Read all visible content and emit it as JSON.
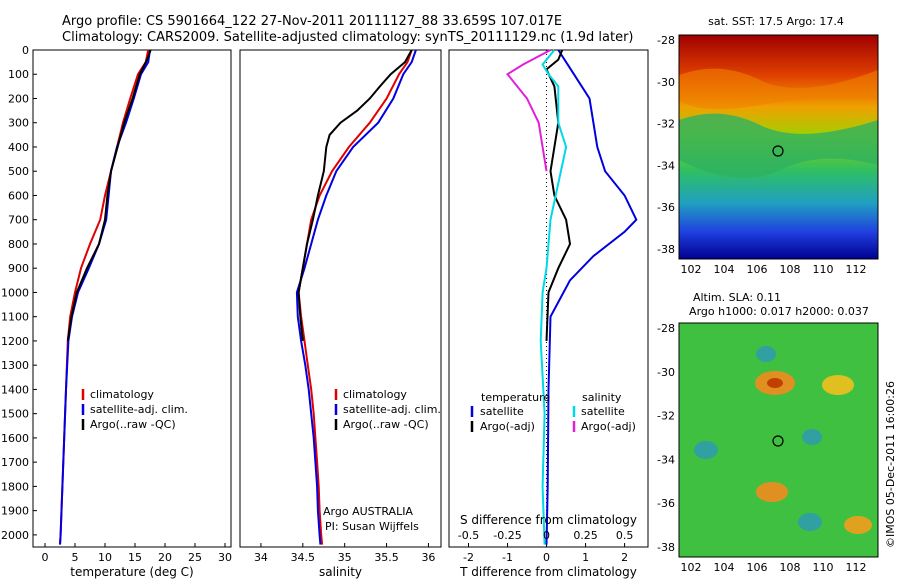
{
  "title_line1": "Argo profile: CS 5901664_122 27-Nov-2011 20111127_88 33.659S 107.017E",
  "title_line2": "Climatology: CARS2009. Satellite-adjusted climatology: synTS_20111129.nc (1.9d later)",
  "colors": {
    "climatology": "#e00000",
    "satellite": "#0000e0",
    "argo": "#000000",
    "satellite_salinity": "#00d8e8",
    "argo_adj_salinity": "#e020d8"
  },
  "chart_data": [
    {
      "type": "line",
      "id": "temperature",
      "xlabel": "temperature (deg C)",
      "xlim": [
        -2,
        31
      ],
      "xticks": [
        0,
        5,
        10,
        15,
        20,
        25,
        30
      ],
      "ylim": [
        2050,
        0
      ],
      "yticks": [
        0,
        100,
        200,
        300,
        400,
        500,
        600,
        700,
        800,
        900,
        1000,
        1100,
        1200,
        1300,
        1400,
        1500,
        1600,
        1700,
        1800,
        1900,
        2000
      ],
      "legend": [
        "climatology",
        "satellite-adj. clim.",
        "Argo(..raw -QC)"
      ],
      "series": [
        {
          "name": "climatology",
          "color": "#e00000",
          "points": [
            [
              17.2,
              0
            ],
            [
              16.8,
              50
            ],
            [
              15.5,
              100
            ],
            [
              14.2,
              200
            ],
            [
              13,
              300
            ],
            [
              12,
              400
            ],
            [
              11,
              500
            ],
            [
              10,
              600
            ],
            [
              9.2,
              700
            ],
            [
              7.5,
              800
            ],
            [
              6,
              900
            ],
            [
              5,
              1000
            ],
            [
              4.2,
              1100
            ],
            [
              3.8,
              1200
            ],
            [
              3.5,
              1400
            ],
            [
              3.2,
              1600
            ],
            [
              2.9,
              1800
            ],
            [
              2.6,
              2000
            ],
            [
              2.5,
              2040
            ]
          ]
        },
        {
          "name": "satellite-adj. clim.",
          "color": "#0000e0",
          "points": [
            [
              17.5,
              0
            ],
            [
              17.2,
              50
            ],
            [
              16,
              100
            ],
            [
              14.8,
              200
            ],
            [
              13.5,
              300
            ],
            [
              12,
              400
            ],
            [
              11,
              500
            ],
            [
              10.6,
              600
            ],
            [
              10.2,
              700
            ],
            [
              9,
              800
            ],
            [
              7.3,
              900
            ],
            [
              5.5,
              1000
            ],
            [
              4.5,
              1100
            ],
            [
              3.9,
              1200
            ],
            [
              3.5,
              1400
            ],
            [
              3.2,
              1600
            ],
            [
              2.9,
              1800
            ],
            [
              2.6,
              2000
            ],
            [
              2.5,
              2040
            ]
          ]
        },
        {
          "name": "Argo(..raw -QC)",
          "color": "#000000",
          "points": [
            [
              17.6,
              0
            ],
            [
              17,
              40
            ],
            [
              15.8,
              100
            ],
            [
              14.6,
              200
            ],
            [
              13.2,
              300
            ],
            [
              12.1,
              400
            ],
            [
              11,
              500
            ],
            [
              10.4,
              600
            ],
            [
              10,
              700
            ],
            [
              9,
              800
            ],
            [
              7,
              900
            ],
            [
              5.3,
              1000
            ],
            [
              4.4,
              1100
            ],
            [
              3.8,
              1200
            ]
          ]
        }
      ]
    },
    {
      "type": "line",
      "id": "salinity",
      "xlabel": "salinity",
      "xlim": [
        33.75,
        36.15
      ],
      "xticks": [
        34,
        34.5,
        35,
        35.5,
        36
      ],
      "ylim": [
        2050,
        0
      ],
      "legend": [
        "climatology",
        "satellite-adj. clim.",
        "Argo(..raw -QC)"
      ],
      "annotation": [
        "Argo AUSTRALIA",
        "PI: Susan Wijffels"
      ],
      "series": [
        {
          "name": "climatology",
          "color": "#e00000",
          "points": [
            [
              35.8,
              0
            ],
            [
              35.75,
              50
            ],
            [
              35.65,
              100
            ],
            [
              35.5,
              200
            ],
            [
              35.3,
              300
            ],
            [
              35.05,
              400
            ],
            [
              34.85,
              500
            ],
            [
              34.7,
              600
            ],
            [
              34.6,
              700
            ],
            [
              34.55,
              800
            ],
            [
              34.5,
              900
            ],
            [
              34.45,
              1000
            ],
            [
              34.48,
              1100
            ],
            [
              34.52,
              1200
            ],
            [
              34.56,
              1300
            ],
            [
              34.6,
              1400
            ],
            [
              34.63,
              1500
            ],
            [
              34.65,
              1600
            ],
            [
              34.67,
              1700
            ],
            [
              34.69,
              1800
            ],
            [
              34.7,
              1900
            ],
            [
              34.72,
              2000
            ],
            [
              34.73,
              2040
            ]
          ]
        },
        {
          "name": "satellite-adj. clim.",
          "color": "#0000e0",
          "points": [
            [
              35.85,
              0
            ],
            [
              35.8,
              50
            ],
            [
              35.7,
              100
            ],
            [
              35.58,
              200
            ],
            [
              35.4,
              300
            ],
            [
              35.1,
              400
            ],
            [
              34.9,
              500
            ],
            [
              34.78,
              600
            ],
            [
              34.68,
              700
            ],
            [
              34.6,
              800
            ],
            [
              34.52,
              900
            ],
            [
              34.43,
              1000
            ],
            [
              34.44,
              1100
            ],
            [
              34.48,
              1200
            ],
            [
              34.53,
              1300
            ],
            [
              34.57,
              1400
            ],
            [
              34.6,
              1500
            ],
            [
              34.63,
              1600
            ],
            [
              34.65,
              1700
            ],
            [
              34.67,
              1800
            ],
            [
              34.68,
              1900
            ],
            [
              34.7,
              2000
            ],
            [
              34.71,
              2040
            ]
          ]
        },
        {
          "name": "Argo(..raw -QC)",
          "color": "#000000",
          "points": [
            [
              35.8,
              0
            ],
            [
              35.72,
              50
            ],
            [
              35.55,
              100
            ],
            [
              35.42,
              150
            ],
            [
              35.3,
              200
            ],
            [
              35.15,
              250
            ],
            [
              34.95,
              300
            ],
            [
              34.82,
              350
            ],
            [
              34.78,
              400
            ],
            [
              34.75,
              500
            ],
            [
              34.68,
              600
            ],
            [
              34.62,
              700
            ],
            [
              34.55,
              800
            ],
            [
              34.5,
              900
            ],
            [
              34.45,
              1000
            ],
            [
              34.47,
              1100
            ],
            [
              34.5,
              1200
            ]
          ]
        }
      ]
    },
    {
      "type": "line",
      "id": "difference",
      "xlabel": "T difference from climatology",
      "xlabel_top": "S difference from climatology",
      "xlim": [
        -2.5,
        2.6
      ],
      "xticks": [
        -2,
        -1,
        0,
        1,
        2
      ],
      "sticks": [
        "-0.5",
        "-0.25",
        "0",
        "0.25",
        "0.5"
      ],
      "ylim": [
        2050,
        0
      ],
      "legend_temperature": {
        "heading": "temperature",
        "items": [
          "satellite",
          "Argo(-adj)"
        ]
      },
      "legend_salinity": {
        "heading": "salinity",
        "items": [
          "satellite",
          "Argo(-adj)"
        ]
      },
      "series": [
        {
          "name": "T satellite",
          "color": "#0000e0",
          "points": [
            [
              0.3,
              0
            ],
            [
              0.5,
              50
            ],
            [
              0.7,
              100
            ],
            [
              1.1,
              200
            ],
            [
              1.2,
              300
            ],
            [
              1.3,
              400
            ],
            [
              1.5,
              500
            ],
            [
              2,
              600
            ],
            [
              2.3,
              700
            ],
            [
              2,
              750
            ],
            [
              1.2,
              850
            ],
            [
              0.6,
              950
            ],
            [
              0.1,
              1100
            ],
            [
              0.05,
              1400
            ],
            [
              0.03,
              1800
            ],
            [
              0,
              2040
            ]
          ]
        },
        {
          "name": "T Argo(-adj)",
          "color": "#000000",
          "points": [
            [
              0.4,
              0
            ],
            [
              0.3,
              40
            ],
            [
              0,
              80
            ],
            [
              0.2,
              150
            ],
            [
              0.3,
              300
            ],
            [
              0.2,
              400
            ],
            [
              0.1,
              500
            ],
            [
              0.2,
              600
            ],
            [
              0.5,
              700
            ],
            [
              0.6,
              800
            ],
            [
              0.3,
              900
            ],
            [
              0.05,
              1000
            ],
            [
              0,
              1200
            ]
          ]
        },
        {
          "name": "S satellite",
          "color": "#00d8e8",
          "points": [
            [
              0.2,
              0
            ],
            [
              -0.1,
              60
            ],
            [
              0.05,
              100
            ],
            [
              0.3,
              150
            ],
            [
              0.3,
              300
            ],
            [
              0.5,
              400
            ],
            [
              0.3,
              550
            ],
            [
              0.1,
              700
            ],
            [
              0,
              900
            ],
            [
              -0.1,
              1000
            ],
            [
              -0.15,
              1200
            ],
            [
              -0.05,
              1500
            ],
            [
              -0.1,
              1800
            ],
            [
              -0.05,
              2040
            ]
          ]
        },
        {
          "name": "S Argo(-adj)",
          "color": "#e020d8",
          "points": [
            [
              0.1,
              0
            ],
            [
              -0.6,
              60
            ],
            [
              -1,
              100
            ],
            [
              -0.5,
              200
            ],
            [
              -0.2,
              300
            ],
            [
              -0.1,
              400
            ],
            [
              0,
              500
            ]
          ]
        }
      ]
    }
  ],
  "sst_map": {
    "title": "sat. SST: 17.5 Argo: 17.4",
    "xticks": [
      "102",
      "104",
      "106",
      "108",
      "110",
      "112"
    ],
    "yticks": [
      "-28",
      "-30",
      "-32",
      "-34",
      "-36",
      "-38"
    ]
  },
  "sla_map": {
    "title1": "Altim. SLA: 0.11",
    "title2": "Argo h1000: 0.017 h2000: 0.037",
    "xticks": [
      "102",
      "104",
      "106",
      "108",
      "110",
      "112"
    ],
    "yticks": [
      "-28",
      "-30",
      "-32",
      "-34",
      "-36",
      "-38"
    ]
  },
  "credit": "©IMOS 05-Dec-2011 16:00:26"
}
